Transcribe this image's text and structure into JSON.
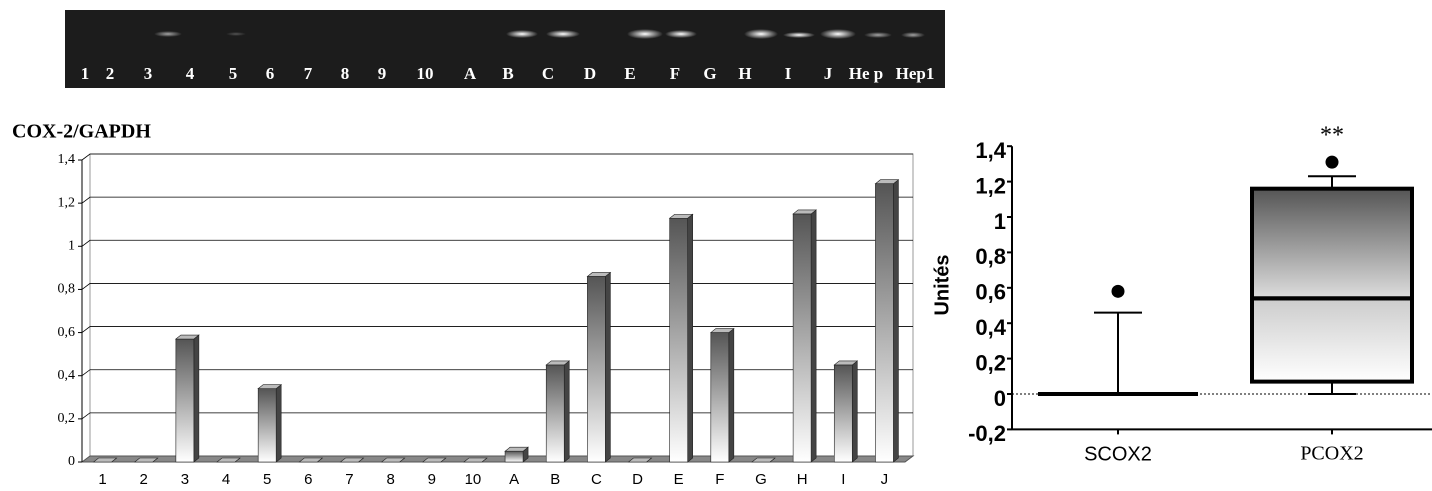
{
  "gel": {
    "lanes": [
      "1",
      "2",
      "3",
      "4",
      "5",
      "6",
      "7",
      "8",
      "9",
      "10",
      "A",
      "B",
      "C",
      "D",
      "E",
      "F",
      "G",
      "H",
      "I",
      "J",
      "He p",
      "Hep1"
    ]
  },
  "chart_data": [
    {
      "type": "bar",
      "title": "COX-2/GAPDH",
      "categories": [
        "1",
        "2",
        "3",
        "4",
        "5",
        "6",
        "7",
        "8",
        "9",
        "10",
        "A",
        "B",
        "C",
        "D",
        "E",
        "F",
        "G",
        "H",
        "I",
        "J"
      ],
      "values": [
        0,
        0,
        0.57,
        0,
        0.34,
        0,
        0,
        0,
        0,
        0,
        0.05,
        0.45,
        0.86,
        0,
        1.13,
        0.6,
        0,
        1.15,
        0.45,
        1.29
      ],
      "ylim": [
        0,
        1.4
      ],
      "yticks": [
        0,
        {
          "value": 0.2,
          "label": "0,2"
        },
        {
          "value": 0.4,
          "label": "0,4"
        },
        {
          "value": 0.6,
          "label": "0,6"
        },
        {
          "value": 0.8,
          "label": "0,8"
        },
        1,
        {
          "value": 1.2,
          "label": "1,2"
        },
        {
          "value": 1.4,
          "label": "1,4"
        }
      ],
      "grid": true
    },
    {
      "type": "box",
      "ylabel": "Unités",
      "annotation": "**",
      "categories": [
        "SCOX2",
        "PCOX2"
      ],
      "boxes": [
        {
          "min": 0,
          "q1": 0,
          "median": 0,
          "q3": 0,
          "max": 0.46,
          "outliers": [
            0.58
          ]
        },
        {
          "min": 0,
          "q1": 0.07,
          "median": 0.54,
          "q3": 1.16,
          "max": 1.23,
          "outliers": [
            1.31
          ]
        }
      ],
      "ylim": [
        -0.2,
        1.4
      ],
      "yticks": [
        {
          "value": -0.2,
          "label": "-0,2"
        },
        0,
        {
          "value": 0.2,
          "label": "0,2"
        },
        {
          "value": 0.4,
          "label": "0,4"
        },
        {
          "value": 0.6,
          "label": "0,6"
        },
        {
          "value": 0.8,
          "label": "0,8"
        },
        1,
        {
          "value": 1.2,
          "label": "1,2"
        },
        {
          "value": 1.4,
          "label": "1,4"
        }
      ]
    }
  ]
}
